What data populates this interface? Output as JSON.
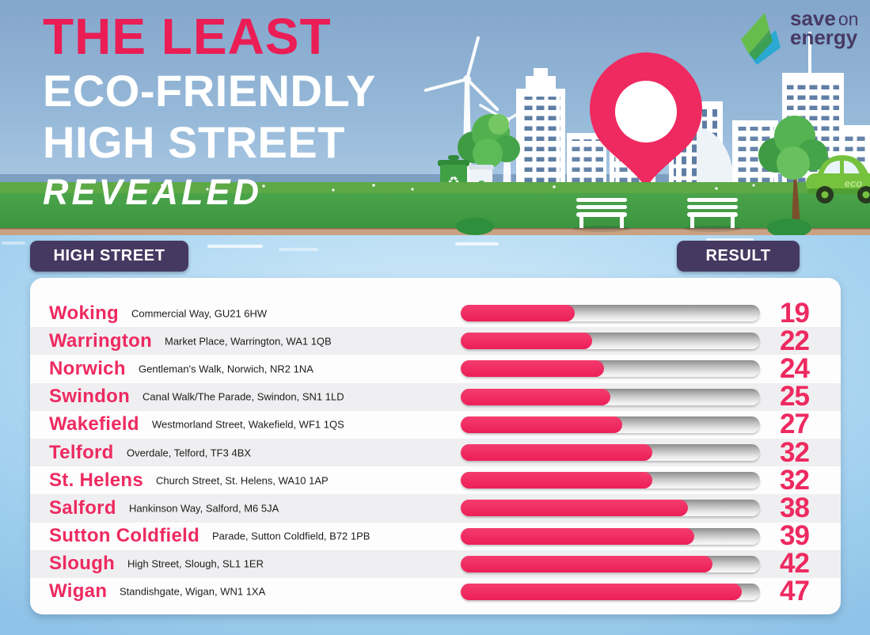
{
  "title": {
    "line1": "THE LEAST",
    "line2": "ECO-FRIENDLY",
    "line3": "HIGH STREET",
    "line4": "REVEALED"
  },
  "logo": {
    "save": "save",
    "on": "on",
    "energy": "energy"
  },
  "columns": {
    "high_street": "HIGH STREET",
    "result": "RESULT"
  },
  "icons": {
    "recycle": "♻",
    "eco_label": "eco"
  },
  "rows": [
    {
      "city": "Woking",
      "address": "Commercial Way, GU21 6HW",
      "value": 19
    },
    {
      "city": "Warrington",
      "address": "Market Place, Warrington, WA1 1QB",
      "value": 22
    },
    {
      "city": "Norwich",
      "address": "Gentleman's Walk, Norwich, NR2 1NA",
      "value": 24
    },
    {
      "city": "Swindon",
      "address": "Canal Walk/The Parade, Swindon, SN1 1LD",
      "value": 25
    },
    {
      "city": "Wakefield",
      "address": "Westmorland Street, Wakefield, WF1 1QS",
      "value": 27
    },
    {
      "city": "Telford",
      "address": "Overdale, Telford, TF3 4BX",
      "value": 32
    },
    {
      "city": "St. Helens",
      "address": "Church Street, St. Helens, WA10 1AP",
      "value": 32
    },
    {
      "city": "Salford",
      "address": "Hankinson Way, Salford, M6 5JA",
      "value": 38
    },
    {
      "city": "Sutton Coldfield",
      "address": "Parade, Sutton Coldfield, B72 1PB",
      "value": 39
    },
    {
      "city": "Slough",
      "address": "High Street, Slough, SL1 1ER",
      "value": 42
    },
    {
      "city": "Wigan",
      "address": "Standishgate, Wigan, WN1 1XA",
      "value": 47
    }
  ],
  "chart_data": {
    "type": "bar",
    "orientation": "horizontal",
    "title": "The Least Eco-Friendly High Street Revealed",
    "categories": [
      "Woking",
      "Warrington",
      "Norwich",
      "Swindon",
      "Wakefield",
      "Telford",
      "St. Helens",
      "Salford",
      "Sutton Coldfield",
      "Slough",
      "Wigan"
    ],
    "values": [
      19,
      22,
      24,
      25,
      27,
      32,
      32,
      38,
      39,
      42,
      47
    ],
    "xlim": [
      0,
      50
    ],
    "grid": false,
    "value_labels": "right of bars",
    "bar_color": "#ee2a60",
    "track_color": "#c6c6c6",
    "value_label_color": "#ee2a60"
  },
  "colors": {
    "pink": "#ee2a60",
    "purple": "#463961",
    "grass_green": "#3e9c43",
    "tan_strip": "#c9a183",
    "sky_top": "#83a6cb",
    "sky_bottom": "#abc9e4",
    "lower_bg": "#a0cfee",
    "row_stripe": "#efeff1",
    "card_bg": "#fdfdfe",
    "logo_green": "#67bd4b",
    "logo_teal": "#2aa9d2"
  }
}
